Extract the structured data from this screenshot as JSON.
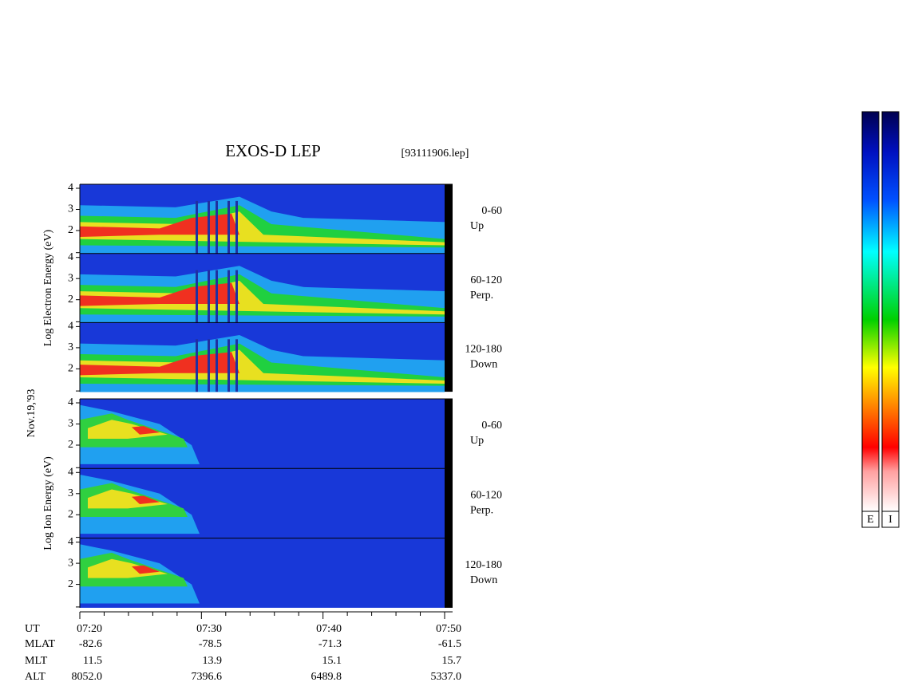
{
  "title": "EXOS-D LEP",
  "file": "[93111906.lep]",
  "date": "Nov.19,'93",
  "groups": [
    {
      "label": "Log Electron Energy (eV)",
      "panels": [
        {
          "ticks": [
            4,
            3,
            2
          ],
          "angle": "0-60",
          "dir": "Up"
        },
        {
          "ticks": [
            4,
            3,
            2
          ],
          "angle": "60-120",
          "dir": "Perp."
        },
        {
          "ticks": [
            4,
            3,
            2
          ],
          "angle": "120-180",
          "dir": "Down"
        }
      ]
    },
    {
      "label": "Log Ion Energy (eV)",
      "panels": [
        {
          "ticks": [
            4,
            3,
            2
          ],
          "angle": "0-60",
          "dir": "Up"
        },
        {
          "ticks": [
            4,
            3,
            2
          ],
          "angle": "60-120",
          "dir": "Perp."
        },
        {
          "ticks": [
            4,
            3,
            2
          ],
          "angle": "120-180",
          "dir": "Down"
        }
      ]
    }
  ],
  "footer": {
    "rows": [
      {
        "name": "UT",
        "values": [
          "07:20",
          "07:30",
          "07:40",
          "07:50"
        ]
      },
      {
        "name": "MLAT",
        "values": [
          "-82.6",
          "-78.5",
          "-71.3",
          "-61.5"
        ]
      },
      {
        "name": "MLT",
        "values": [
          "11.5",
          "13.9",
          "15.1",
          "15.7"
        ]
      },
      {
        "name": "ALT",
        "values": [
          "8052.0",
          "7396.6",
          "6489.8",
          "5337.0"
        ]
      }
    ]
  },
  "colorbars": [
    "E",
    "I"
  ]
}
